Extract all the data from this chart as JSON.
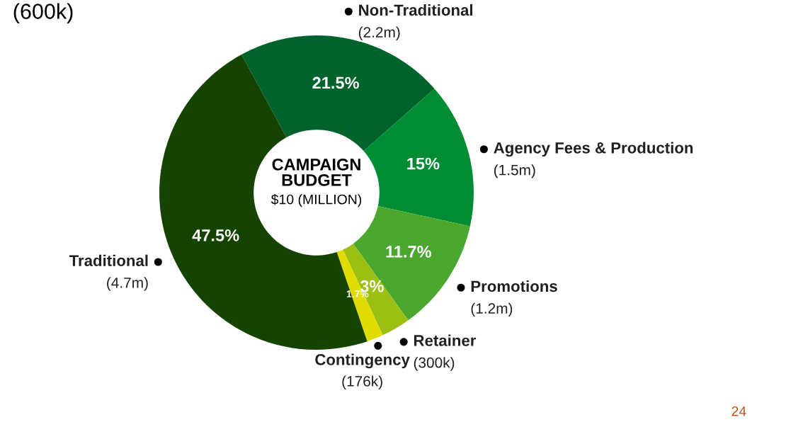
{
  "chart_data": {
    "type": "donut",
    "title": "CAMPAIGN BUDGET",
    "subtitle": "$10 (MILLION)",
    "categories": [
      "Non-Traditional",
      "Agency Fees & Production",
      "Promotions",
      "Retainer",
      "Contingency",
      "Traditional"
    ],
    "values": [
      21.5,
      15,
      11.7,
      3,
      1.7,
      47.5
    ],
    "value_labels": [
      "21.5%",
      "15%",
      "11.7%",
      "3%",
      "1.7%",
      "47.5%"
    ],
    "colors": [
      "#00632d",
      "#008c32",
      "#4aa82e",
      "#9cbf14",
      "#e0dc00",
      "#154400"
    ],
    "annotations": [
      "(2.2m)",
      "(1.5m)",
      "(1.2m)",
      "(300k)",
      "(176k)",
      "(4.7m)",
      "(600k)",
      "24"
    ],
    "legend": false
  }
}
